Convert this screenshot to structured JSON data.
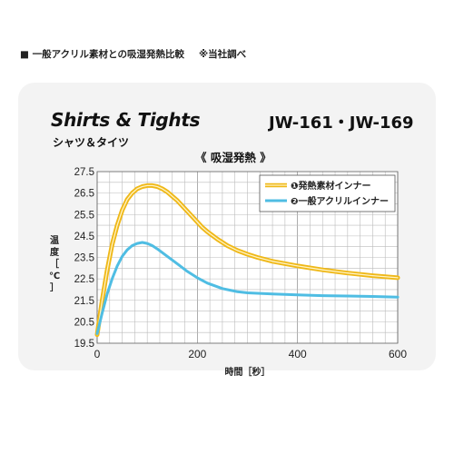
{
  "header": {
    "title": "■ 一般アクリル素材との吸湿発熱比較",
    "note": "※当社調べ"
  },
  "title_en": "Shirts & Tights",
  "title_jp": "シャツ＆タイツ",
  "model": "JW-161・JW-169",
  "colors": {
    "series1": "#efb818",
    "series2": "#4fbde3",
    "panel": "#f3f3f3"
  },
  "chart_data": {
    "type": "line",
    "title": "《 吸湿発熱 》",
    "xlabel": "時間［秒］",
    "ylabel": "温度［℃］",
    "xlim": [
      0,
      600
    ],
    "ylim": [
      19.5,
      27.5
    ],
    "xticks": [
      "0",
      "200",
      "400",
      "600"
    ],
    "yticks": [
      "27.5",
      "26.5",
      "25.5",
      "24.5",
      "23.5",
      "22.5",
      "21.5",
      "20.5",
      "19.5"
    ],
    "grid": true,
    "legend_position": "top-right",
    "series": [
      {
        "name": "❶発熱素材インナー",
        "color": "#efb818",
        "x": [
          0,
          10,
          20,
          30,
          40,
          50,
          60,
          70,
          80,
          90,
          100,
          110,
          120,
          130,
          140,
          150,
          160,
          170,
          180,
          190,
          200,
          210,
          220,
          240,
          260,
          280,
          300,
          320,
          350,
          400,
          450,
          500,
          550,
          600
        ],
        "y": [
          19.9,
          21.5,
          22.9,
          24.1,
          25.0,
          25.7,
          26.2,
          26.5,
          26.7,
          26.8,
          26.85,
          26.85,
          26.8,
          26.7,
          26.55,
          26.35,
          26.15,
          25.9,
          25.65,
          25.4,
          25.15,
          24.9,
          24.7,
          24.35,
          24.05,
          23.82,
          23.65,
          23.5,
          23.32,
          23.1,
          22.92,
          22.77,
          22.65,
          22.55
        ]
      },
      {
        "name": "❷一般アクリルインナー",
        "color": "#4fbde3",
        "x": [
          0,
          10,
          20,
          30,
          40,
          50,
          60,
          70,
          80,
          90,
          100,
          110,
          120,
          140,
          160,
          180,
          200,
          220,
          250,
          280,
          300,
          350,
          400,
          450,
          500,
          550,
          600
        ],
        "y": [
          19.95,
          20.9,
          21.8,
          22.5,
          23.1,
          23.55,
          23.85,
          24.05,
          24.15,
          24.2,
          24.15,
          24.05,
          23.9,
          23.55,
          23.2,
          22.85,
          22.55,
          22.3,
          22.05,
          21.9,
          21.85,
          21.8,
          21.75,
          21.72,
          21.7,
          21.68,
          21.65
        ]
      }
    ]
  }
}
